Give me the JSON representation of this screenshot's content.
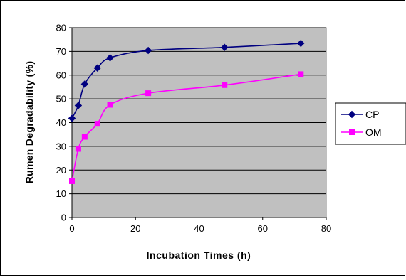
{
  "chart_data": {
    "type": "line",
    "title": "",
    "xlabel": "Incubation Times (h)",
    "ylabel": "Rumen Degradability (%)",
    "xlim": [
      0,
      80
    ],
    "ylim": [
      0,
      80
    ],
    "x_ticks": [
      0,
      20,
      40,
      60,
      80
    ],
    "y_ticks": [
      0,
      10,
      20,
      30,
      40,
      50,
      60,
      70,
      80
    ],
    "grid": "horizontal",
    "legend_position": "right",
    "plot_background": "#c0c0c0",
    "series": [
      {
        "name": "CP",
        "color": "#000080",
        "marker": "diamond",
        "x": [
          0,
          2,
          4,
          8,
          12,
          24,
          48,
          72
        ],
        "y": [
          41.8,
          47.2,
          56.2,
          63.0,
          67.3,
          70.4,
          71.7,
          73.4
        ]
      },
      {
        "name": "OM",
        "color": "#ff00ff",
        "marker": "square",
        "x": [
          0,
          2,
          4,
          8,
          12,
          24,
          48,
          72
        ],
        "y": [
          15.3,
          28.9,
          34.0,
          39.5,
          47.5,
          52.4,
          55.8,
          60.4
        ]
      }
    ]
  }
}
